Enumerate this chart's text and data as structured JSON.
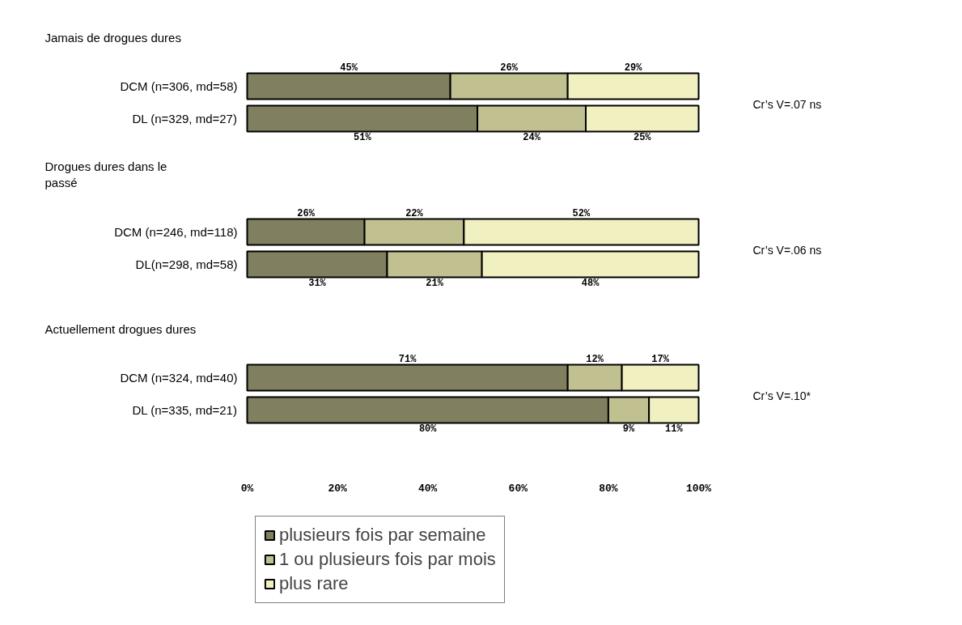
{
  "chart_data": {
    "type": "bar",
    "orientation": "horizontal",
    "stacked": true,
    "categories": [
      "DCM (n=306, md=58)",
      "DL (n=329, md=27)",
      "DCM (n=246, md=118)",
      "DL(n=298, md=58)",
      "DCM (n=324, md=40)",
      "DL (n=335, md=21)"
    ],
    "series": [
      {
        "name": "plusieurs fois par semaine",
        "color": "#808060",
        "values": [
          45,
          51,
          26,
          31,
          71,
          80
        ],
        "value_labels": [
          "45%",
          "51%",
          "26%",
          "31%",
          "71%",
          "80%"
        ]
      },
      {
        "name": "1 ou plusieurs fois par mois",
        "color": "#c0c090",
        "values": [
          26,
          24,
          22,
          21,
          12,
          9
        ],
        "value_labels": [
          "26%",
          "24%",
          "22%",
          "21%",
          "12%",
          "9%"
        ]
      },
      {
        "name": "plus rare",
        "color": "#f0f0c0",
        "values": [
          29,
          25,
          52,
          48,
          17,
          11
        ],
        "value_labels": [
          "29%",
          "25%",
          "52%",
          "48%",
          "17%",
          "11%"
        ]
      }
    ],
    "xlim": [
      0,
      100
    ],
    "xticks": [
      {
        "value": 0,
        "label": "0%"
      },
      {
        "value": 20,
        "label": "20%"
      },
      {
        "value": 40,
        "label": "40%"
      },
      {
        "value": 60,
        "label": "60%"
      },
      {
        "value": 80,
        "label": "80%"
      },
      {
        "value": 100,
        "label": "100%"
      }
    ],
    "annotations": [
      "Jamais de drogues dures",
      "Drogues dures dans le\npassé",
      "Actuellement drogues dures",
      "Cr’s V=.07 ns",
      "Cr’s V=.06 ns",
      "Cr’s V=.10*"
    ],
    "grid": false,
    "legend": "bottom"
  }
}
